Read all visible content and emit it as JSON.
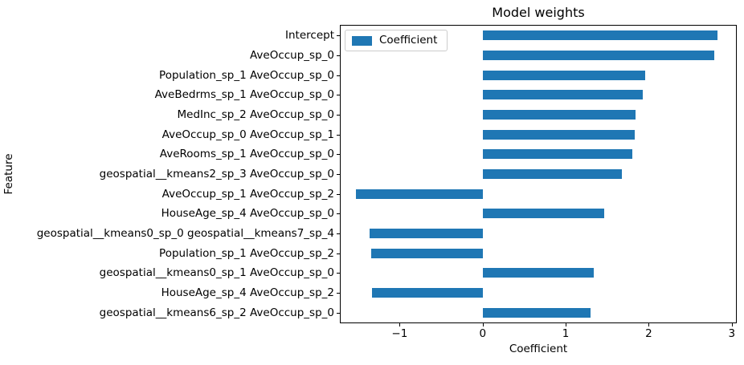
{
  "chart_data": {
    "type": "bar",
    "orientation": "horizontal",
    "title": "Model weights",
    "xlabel": "Coefficient",
    "ylabel": "Feature",
    "legend": [
      "Coefficient"
    ],
    "legend_position": "upper left",
    "bar_color": "#1f77b4",
    "grid": false,
    "xlim": [
      -1.71,
      3.05
    ],
    "xticks": [
      {
        "value": -1,
        "label": "−1"
      },
      {
        "value": 0,
        "label": "0"
      },
      {
        "value": 1,
        "label": "1"
      },
      {
        "value": 2,
        "label": "2"
      },
      {
        "value": 3,
        "label": "3"
      }
    ],
    "categories": [
      "Intercept",
      "AveOccup_sp_0",
      "Population_sp_1 AveOccup_sp_0",
      "AveBedrms_sp_1 AveOccup_sp_0",
      "MedInc_sp_2 AveOccup_sp_0",
      "AveOccup_sp_0 AveOccup_sp_1",
      "AveRooms_sp_1 AveOccup_sp_0",
      "geospatial__kmeans2_sp_3 AveOccup_sp_0",
      "AveOccup_sp_1 AveOccup_sp_2",
      "HouseAge_sp_4 AveOccup_sp_0",
      "geospatial__kmeans0_sp_0 geospatial__kmeans7_sp_4",
      "Population_sp_1 AveOccup_sp_2",
      "geospatial__kmeans0_sp_1 AveOccup_sp_0",
      "HouseAge_sp_4 AveOccup_sp_2",
      "geospatial__kmeans6_sp_2 AveOccup_sp_0"
    ],
    "values": [
      2.83,
      2.79,
      1.96,
      1.93,
      1.84,
      1.83,
      1.8,
      1.68,
      -1.53,
      1.46,
      -1.36,
      -1.34,
      1.34,
      -1.33,
      1.3
    ]
  }
}
